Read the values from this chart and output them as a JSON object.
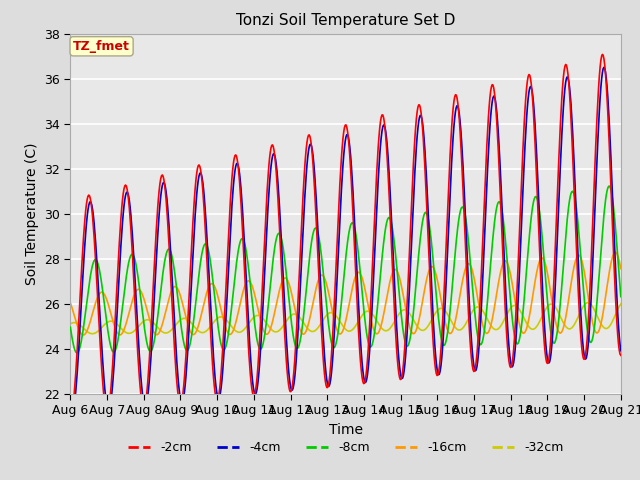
{
  "title": "Tonzi Soil Temperature Set D",
  "xlabel": "Time",
  "ylabel": "Soil Temperature (C)",
  "ylim": [
    22,
    38
  ],
  "x_tick_labels": [
    "Aug 6",
    "Aug 7",
    "Aug 8",
    "Aug 9",
    "Aug 10",
    "Aug 11",
    "Aug 12",
    "Aug 13",
    "Aug 14",
    "Aug 15",
    "Aug 16",
    "Aug 17",
    "Aug 18",
    "Aug 19",
    "Aug 20",
    "Aug 21"
  ],
  "annotation_text": "TZ_fmet",
  "annotation_color": "#cc0000",
  "annotation_bg": "#ffffcc",
  "line_colors": {
    "-2cm": "#ff0000",
    "-4cm": "#0000cc",
    "-8cm": "#00cc00",
    "-16cm": "#ff9900",
    "-32cm": "#cccc00"
  },
  "bg_color": "#dddddd",
  "plot_bg_color": "#e8e8e8",
  "grid_color": "#ffffff"
}
